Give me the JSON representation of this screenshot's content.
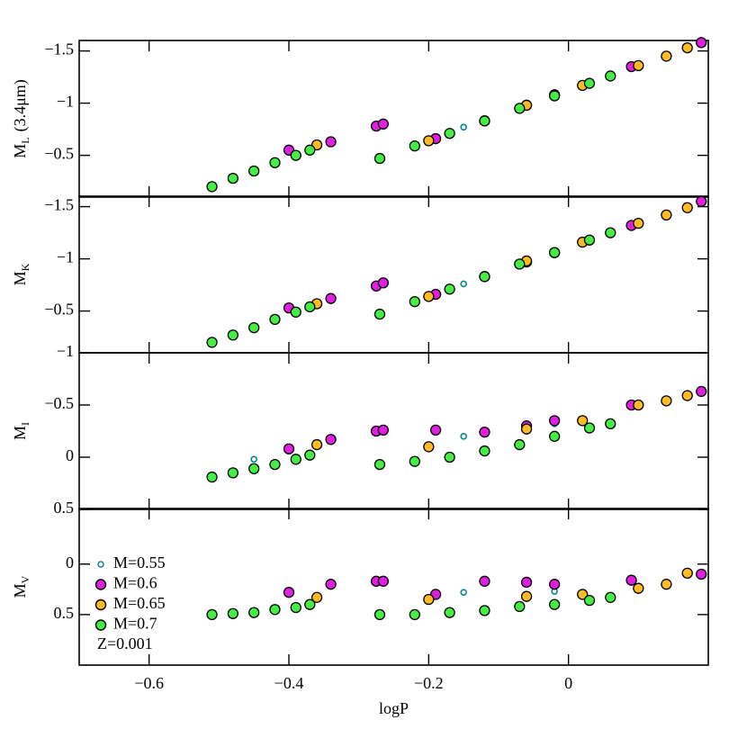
{
  "chart_data": [
    {
      "type": "scatter",
      "ylabel": "M",
      "ylabel_sub": "L",
      "ylabel_extra": "(3.4μm)",
      "xlim": [
        -0.7,
        0.2
      ],
      "xticks": [
        -0.6,
        -0.4,
        -0.2,
        0
      ],
      "ylim": [
        -0.1,
        -1.6
      ],
      "yticks": [
        {
          "value": -1.5,
          "label": "−1.5"
        },
        {
          "value": -1,
          "label": "−1"
        },
        {
          "value": -0.5,
          "label": "−0.5"
        }
      ],
      "series": [
        {
          "color": "#00868b",
          "marker": "open",
          "x": [
            -0.45,
            -0.15,
            -0.02
          ],
          "values": [
            -0.37,
            -0.77,
            -1.07
          ]
        },
        {
          "color": "#e020e0",
          "marker": "filled",
          "x": [
            -0.4,
            -0.34,
            -0.275,
            -0.265,
            -0.19,
            -0.12,
            -0.06,
            -0.02,
            0.09,
            0.19
          ],
          "values": [
            -0.55,
            -0.63,
            -0.78,
            -0.8,
            -0.66,
            -0.83,
            -0.98,
            -1.08,
            -1.35,
            -1.58
          ]
        },
        {
          "color": "#ffbb22",
          "marker": "filled",
          "x": [
            -0.36,
            -0.2,
            -0.06,
            0.02,
            0.1,
            0.14,
            0.17
          ],
          "values": [
            -0.6,
            -0.64,
            -0.98,
            -1.17,
            -1.36,
            -1.45,
            -1.53
          ]
        },
        {
          "color": "#44ee44",
          "marker": "filled",
          "x": [
            -0.51,
            -0.48,
            -0.45,
            -0.42,
            -0.39,
            -0.37,
            -0.27,
            -0.22,
            -0.17,
            -0.12,
            -0.07,
            -0.02,
            0.03,
            0.06
          ],
          "values": [
            -0.2,
            -0.28,
            -0.35,
            -0.43,
            -0.5,
            -0.55,
            -0.47,
            -0.59,
            -0.71,
            -0.83,
            -0.95,
            -1.07,
            -1.19,
            -1.26
          ]
        }
      ]
    },
    {
      "type": "scatter",
      "ylabel": "M",
      "ylabel_sub": "K",
      "xlim": [
        -0.7,
        0.2
      ],
      "xticks": [
        -0.6,
        -0.4,
        -0.2,
        0
      ],
      "ylim": [
        -0.1,
        -1.6
      ],
      "yticks": [
        {
          "value": -1.5,
          "label": "−1.5"
        },
        {
          "value": -1,
          "label": "−1"
        },
        {
          "value": -0.5,
          "label": "−0.5"
        }
      ],
      "series": [
        {
          "color": "#00868b",
          "marker": "open",
          "x": [
            -0.45,
            -0.15,
            -0.02
          ],
          "values": [
            -0.36,
            -0.76,
            -1.06
          ]
        },
        {
          "color": "#e020e0",
          "marker": "filled",
          "x": [
            -0.4,
            -0.34,
            -0.275,
            -0.265,
            -0.19,
            -0.12,
            -0.06,
            -0.02,
            0.09,
            0.19
          ],
          "values": [
            -0.53,
            -0.62,
            -0.74,
            -0.77,
            -0.66,
            -0.83,
            -0.97,
            -1.06,
            -1.32,
            -1.55
          ]
        },
        {
          "color": "#ffbb22",
          "marker": "filled",
          "x": [
            -0.36,
            -0.2,
            -0.06,
            0.02,
            0.1,
            0.14,
            0.17
          ],
          "values": [
            -0.57,
            -0.64,
            -0.98,
            -1.16,
            -1.34,
            -1.42,
            -1.49
          ]
        },
        {
          "color": "#44ee44",
          "marker": "filled",
          "x": [
            -0.51,
            -0.48,
            -0.45,
            -0.42,
            -0.39,
            -0.37,
            -0.27,
            -0.22,
            -0.17,
            -0.12,
            -0.07,
            -0.02,
            0.03,
            0.06
          ],
          "values": [
            -0.2,
            -0.27,
            -0.34,
            -0.42,
            -0.49,
            -0.54,
            -0.47,
            -0.59,
            -0.71,
            -0.83,
            -0.95,
            -1.06,
            -1.18,
            -1.25
          ]
        }
      ]
    },
    {
      "type": "scatter",
      "ylabel": "M",
      "ylabel_sub": "I",
      "xlim": [
        -0.7,
        0.2
      ],
      "xticks": [
        -0.6,
        -0.4,
        -0.2,
        0
      ],
      "ylim": [
        0.5,
        -1.0
      ],
      "yticks": [
        {
          "value": -1,
          "label": "−1"
        },
        {
          "value": -0.5,
          "label": "−0.5"
        },
        0,
        0.5
      ],
      "series": [
        {
          "color": "#00868b",
          "marker": "open",
          "x": [
            -0.45,
            -0.15,
            -0.02
          ],
          "values": [
            0.02,
            -0.2,
            -0.32
          ]
        },
        {
          "color": "#e020e0",
          "marker": "filled",
          "x": [
            -0.4,
            -0.34,
            -0.275,
            -0.265,
            -0.19,
            -0.12,
            -0.06,
            -0.02,
            0.09,
            0.19
          ],
          "values": [
            -0.08,
            -0.17,
            -0.25,
            -0.26,
            -0.26,
            -0.24,
            -0.3,
            -0.35,
            -0.5,
            -0.63
          ]
        },
        {
          "color": "#ffbb22",
          "marker": "filled",
          "x": [
            -0.36,
            -0.2,
            -0.06,
            0.02,
            0.1,
            0.14,
            0.17
          ],
          "values": [
            -0.12,
            -0.1,
            -0.27,
            -0.35,
            -0.5,
            -0.54,
            -0.59
          ]
        },
        {
          "color": "#44ee44",
          "marker": "filled",
          "x": [
            -0.51,
            -0.48,
            -0.45,
            -0.42,
            -0.39,
            -0.37,
            -0.27,
            -0.22,
            -0.17,
            -0.12,
            -0.07,
            -0.02,
            0.03,
            0.06
          ],
          "values": [
            0.19,
            0.15,
            0.11,
            0.07,
            0.02,
            -0.02,
            0.07,
            0.04,
            0.0,
            -0.06,
            -0.12,
            -0.2,
            -0.28,
            -0.32
          ]
        }
      ]
    },
    {
      "type": "scatter",
      "ylabel": "M",
      "ylabel_sub": "V",
      "xlabel": "logP",
      "annotation": "Z=0.001",
      "legend": "lower left",
      "xlim": [
        -0.7,
        0.2
      ],
      "xticks": [
        {
          "value": -0.6,
          "label": "−0.6"
        },
        {
          "value": -0.4,
          "label": "−0.4"
        },
        {
          "value": -0.2,
          "label": "−0.2"
        },
        0
      ],
      "ylim": [
        1.0,
        -0.55
      ],
      "yticks": [
        0,
        0.5
      ],
      "series": [
        {
          "name": "M=0.55",
          "color": "#00868b",
          "marker": "open",
          "x": [
            -0.45,
            -0.15,
            -0.02
          ],
          "values": [
            0.47,
            0.28,
            0.27
          ]
        },
        {
          "name": "M=0.6",
          "color": "#e020e0",
          "marker": "filled",
          "x": [
            -0.4,
            -0.34,
            -0.275,
            -0.265,
            -0.19,
            -0.12,
            -0.06,
            -0.02,
            0.09,
            0.19
          ],
          "values": [
            0.28,
            0.2,
            0.17,
            0.17,
            0.3,
            0.17,
            0.18,
            0.2,
            0.16,
            0.1
          ]
        },
        {
          "name": "M=0.65",
          "color": "#ffbb22",
          "marker": "filled",
          "x": [
            -0.36,
            -0.2,
            -0.06,
            0.02,
            0.1,
            0.14,
            0.17
          ],
          "values": [
            0.33,
            0.35,
            0.32,
            0.3,
            0.24,
            0.2,
            0.09
          ]
        },
        {
          "name": "M=0.7",
          "color": "#44ee44",
          "marker": "filled",
          "x": [
            -0.51,
            -0.48,
            -0.45,
            -0.42,
            -0.39,
            -0.37,
            -0.27,
            -0.22,
            -0.17,
            -0.12,
            -0.07,
            -0.02,
            0.03,
            0.06
          ],
          "values": [
            0.5,
            0.49,
            0.48,
            0.45,
            0.43,
            0.4,
            0.5,
            0.5,
            0.48,
            0.46,
            0.42,
            0.4,
            0.36,
            0.33
          ]
        }
      ]
    }
  ]
}
